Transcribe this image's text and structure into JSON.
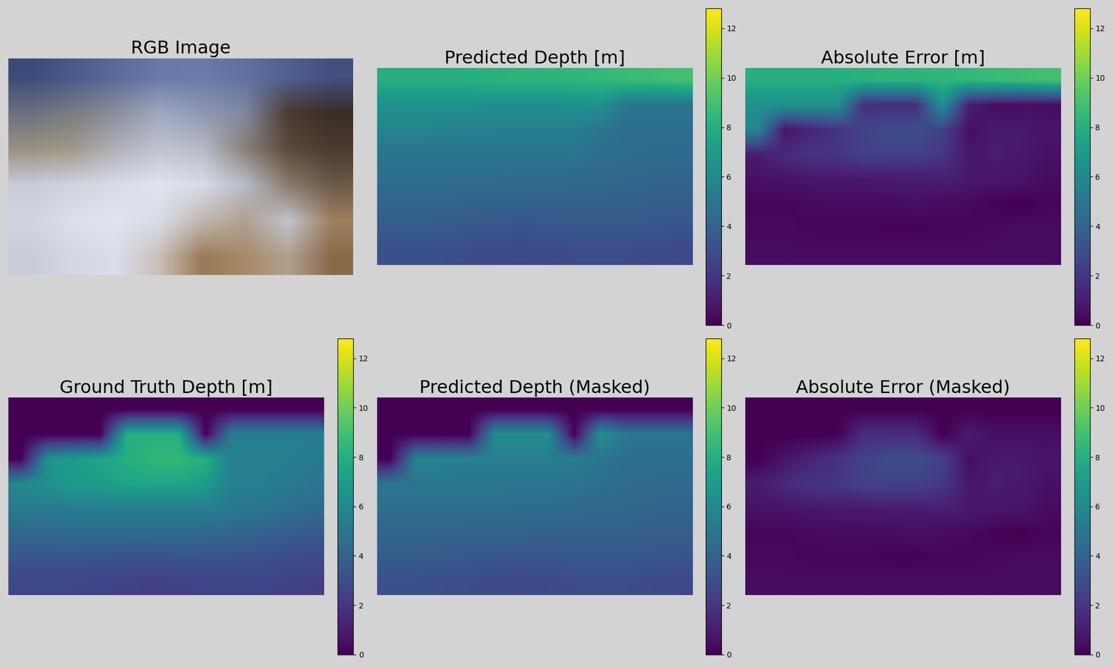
{
  "chart_data": [
    {
      "type": "image",
      "title": "RGB Image",
      "tick_labels": false,
      "pixels": [
        [
          "#3c4a7a",
          "#4a5a8a",
          "#5a6a9a",
          "#6878a8",
          "#6a7aaa",
          "#6070a0",
          "#506090",
          "#44507e"
        ],
        [
          "#6a7080",
          "#7a7c80",
          "#8a8e9c",
          "#a0a8c0",
          "#9098b0",
          "#8088a0",
          "#4a3a30",
          "#3a2e28"
        ],
        [
          "#9a9080",
          "#a09888",
          "#b0b0b8",
          "#c0c4d0",
          "#b8bcc8",
          "#8a8078",
          "#5a4a3a",
          "#4a3a30"
        ],
        [
          "#c8ccd8",
          "#d0d4e0",
          "#d8dce8",
          "#e0e4ee",
          "#d8dce8",
          "#b8bcc8",
          "#8a7a6a",
          "#6a5a48"
        ],
        [
          "#d0d4e0",
          "#dce0ea",
          "#e0e4ee",
          "#d8dce6",
          "#c0b8b0",
          "#b0a090",
          "#c0c4d0",
          "#a08060"
        ],
        [
          "#c8ccd8",
          "#d4d8e4",
          "#dadeea",
          "#c8c0b8",
          "#9a7a58",
          "#a88a68",
          "#b0a090",
          "#8a6a48"
        ]
      ]
    },
    {
      "type": "heatmap",
      "title": "Predicted Depth [m]",
      "tick_labels": false,
      "color_range": [
        0,
        12.8
      ],
      "color_ticks": [
        0,
        2,
        4,
        6,
        8,
        10,
        12
      ],
      "cells": [
        [
          8,
          8,
          8,
          8,
          8.2,
          8.3,
          8.3,
          8.4,
          8.5,
          8.7,
          8.8,
          9
        ],
        [
          6.5,
          6.5,
          6.5,
          6.5,
          6.3,
          6.3,
          6.3,
          6.5,
          6.5,
          5,
          5,
          5
        ],
        [
          5.8,
          5.8,
          5.7,
          5.6,
          5.5,
          5.5,
          5.5,
          5.5,
          5,
          4.6,
          4.6,
          4.6
        ],
        [
          5,
          5,
          5,
          5,
          5,
          5,
          5,
          4.9,
          4.7,
          4.5,
          4.4,
          4.4
        ],
        [
          4.6,
          4.6,
          4.6,
          4.6,
          4.6,
          4.5,
          4.5,
          4.4,
          4.3,
          4.2,
          4.1,
          4.1
        ],
        [
          4.1,
          4.1,
          4.1,
          4,
          4,
          4,
          3.9,
          3.9,
          3.9,
          3.9,
          3.8,
          3.8
        ],
        [
          3.7,
          3.7,
          3.6,
          3.5,
          3.4,
          3.3,
          3.4,
          3.5,
          3.5,
          3.5,
          3.4,
          3.3
        ],
        [
          3.1,
          3.1,
          3.1,
          3,
          2.9,
          2.8,
          2.9,
          3,
          3,
          3,
          2.9,
          2.8
        ]
      ]
    },
    {
      "type": "heatmap",
      "title": "Absolute Error [m]",
      "tick_labels": false,
      "color_range": [
        0,
        12.8
      ],
      "color_ticks": [
        0,
        2,
        4,
        6,
        8,
        10,
        12
      ],
      "cells": [
        [
          8,
          8,
          8,
          8,
          8.2,
          8.3,
          8.3,
          8.4,
          8.5,
          8.7,
          8.8,
          9
        ],
        [
          6.5,
          6.5,
          6.5,
          6.5,
          1.7,
          1.7,
          1.7,
          6.5,
          1.0,
          0.5,
          0.5,
          0.5
        ],
        [
          5.8,
          0.7,
          1.3,
          1.9,
          2.5,
          3.0,
          3.0,
          2.5,
          0.5,
          0.9,
          0.9,
          0.7
        ],
        [
          1.0,
          1.5,
          2.0,
          2.0,
          2.5,
          2.5,
          2.5,
          2.1,
          0.8,
          1.0,
          0.9,
          0.6
        ],
        [
          0.6,
          0.7,
          0.8,
          0.9,
          0.9,
          1.0,
          1.0,
          1.1,
          0.9,
          0.8,
          0.7,
          0.4
        ],
        [
          0.2,
          0.2,
          0.3,
          0.4,
          0.4,
          0.4,
          0.5,
          0.4,
          0.3,
          0.1,
          0,
          0.2
        ],
        [
          0.3,
          0.3,
          0.2,
          0.2,
          0.2,
          0.1,
          0.1,
          0.2,
          0.2,
          0.3,
          0.4,
          0.4
        ],
        [
          0.4,
          0.4,
          0.4,
          0.4,
          0.4,
          0.4,
          0.4,
          0.4,
          0.4,
          0.4,
          0.4,
          0.4
        ]
      ]
    },
    {
      "type": "heatmap",
      "title": "Ground Truth Depth [m]",
      "tick_labels": false,
      "color_range": [
        0,
        12.8
      ],
      "color_ticks": [
        0,
        2,
        4,
        6,
        8,
        10,
        12
      ],
      "cells": [
        [
          0,
          0,
          0,
          0,
          0,
          0,
          0,
          0,
          0,
          0,
          0,
          0
        ],
        [
          0,
          0,
          0,
          0,
          8,
          8,
          8,
          0,
          5.5,
          5.5,
          5.5,
          5.5
        ],
        [
          0,
          6.5,
          7,
          7.5,
          8,
          8.5,
          8.5,
          8,
          5.5,
          5.5,
          5.5,
          5.3
        ],
        [
          6,
          6.5,
          7,
          7,
          7.5,
          7.5,
          7.5,
          7,
          5.5,
          5.5,
          5.3,
          5
        ],
        [
          5.2,
          5.3,
          5.4,
          5.5,
          5.5,
          5.5,
          5.5,
          5.5,
          5.2,
          5,
          4.8,
          4.5
        ],
        [
          4.3,
          4.3,
          4.4,
          4.4,
          4.4,
          4.4,
          4.4,
          4.3,
          4.2,
          4,
          3.8,
          3.6
        ],
        [
          3.4,
          3.4,
          3.4,
          3.3,
          3.2,
          3.2,
          3.3,
          3.3,
          3.3,
          3.2,
          3,
          2.9
        ],
        [
          2.7,
          2.7,
          2.7,
          2.6,
          2.5,
          2.4,
          2.5,
          2.6,
          2.6,
          2.6,
          2.5,
          2.4
        ]
      ]
    },
    {
      "type": "heatmap",
      "title": "Predicted Depth (Masked)",
      "tick_labels": false,
      "color_range": [
        0,
        12.8
      ],
      "color_ticks": [
        0,
        2,
        4,
        6,
        8,
        10,
        12
      ],
      "cells": [
        [
          0,
          0,
          0,
          0,
          0,
          0,
          0,
          0,
          0,
          0,
          0,
          0
        ],
        [
          0,
          0,
          0,
          0,
          6.3,
          6.3,
          6.3,
          0,
          6.5,
          5,
          5,
          5
        ],
        [
          0,
          5.8,
          5.7,
          5.6,
          5.5,
          5.5,
          5.5,
          5.5,
          5,
          4.6,
          4.6,
          4.6
        ],
        [
          5,
          5,
          5,
          5,
          5,
          5,
          5,
          4.9,
          4.7,
          4.5,
          4.4,
          4.4
        ],
        [
          4.6,
          4.6,
          4.6,
          4.6,
          4.6,
          4.5,
          4.5,
          4.4,
          4.3,
          4.2,
          4.1,
          4.1
        ],
        [
          4.1,
          4.1,
          4.1,
          4,
          4,
          4,
          3.9,
          3.9,
          3.9,
          3.9,
          3.8,
          3.8
        ],
        [
          3.7,
          3.7,
          3.6,
          3.5,
          3.4,
          3.3,
          3.4,
          3.5,
          3.5,
          3.5,
          3.4,
          3.3
        ],
        [
          3.1,
          3.1,
          3.1,
          3,
          2.9,
          2.8,
          2.9,
          3,
          3,
          3,
          2.9,
          2.8
        ]
      ]
    },
    {
      "type": "heatmap",
      "title": "Absolute Error (Masked)",
      "tick_labels": false,
      "color_range": [
        0,
        12.8
      ],
      "color_ticks": [
        0,
        2,
        4,
        6,
        8,
        10,
        12
      ],
      "cells": [
        [
          0,
          0,
          0,
          0,
          0,
          0,
          0,
          0,
          0,
          0,
          0,
          0
        ],
        [
          0,
          0,
          0,
          0,
          1.7,
          1.7,
          1.7,
          0,
          1.0,
          0.5,
          0.5,
          0.5
        ],
        [
          0,
          0.7,
          1.3,
          1.9,
          2.5,
          3.0,
          3.0,
          2.5,
          0.5,
          0.9,
          0.9,
          0.7
        ],
        [
          1.0,
          1.5,
          2.0,
          2.0,
          2.5,
          2.5,
          2.5,
          2.1,
          0.8,
          1.0,
          0.9,
          0.6
        ],
        [
          0.6,
          0.7,
          0.8,
          0.9,
          0.9,
          1.0,
          1.0,
          1.1,
          0.9,
          0.8,
          0.7,
          0.4
        ],
        [
          0.2,
          0.2,
          0.3,
          0.4,
          0.4,
          0.4,
          0.5,
          0.4,
          0.3,
          0.1,
          0,
          0.2
        ],
        [
          0.3,
          0.3,
          0.2,
          0.2,
          0.2,
          0.1,
          0.1,
          0.2,
          0.2,
          0.3,
          0.4,
          0.4
        ],
        [
          0.4,
          0.4,
          0.4,
          0.4,
          0.4,
          0.4,
          0.4,
          0.4,
          0.4,
          0.4,
          0.4,
          0.4
        ]
      ]
    }
  ]
}
